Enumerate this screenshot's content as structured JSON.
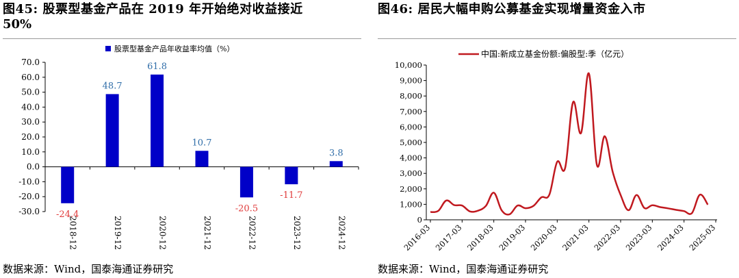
{
  "left_panel": {
    "title_line1": "图45:  股票型基金产品在  2019  年开始绝对收益接近",
    "title_line2": "50%",
    "source": "数据来源：Wind，国泰海通证券研究"
  },
  "right_panel": {
    "title": "图46:  居民大幅申购公募基金实现增量资金入市",
    "source": "数据来源：Wind，国泰海通证券研究"
  },
  "colors": {
    "bar": "#0000c8",
    "positive_label": "#2f6da8",
    "negative_label": "#e03a3a",
    "line": "#c0191f"
  },
  "chart_data": [
    {
      "type": "bar",
      "legend": "股票型基金产品年收益率均值（%）",
      "categories": [
        "2018-12",
        "2019-12",
        "2020-12",
        "2021-12",
        "2022-12",
        "2023-12",
        "2024-12"
      ],
      "values": [
        -24.4,
        48.7,
        61.8,
        10.7,
        -20.5,
        -11.7,
        3.8
      ],
      "value_labels": [
        "-24.4",
        "48.7",
        "61.8",
        "10.7",
        "-20.5",
        "-11.7",
        "3.8"
      ],
      "ylim": [
        -30,
        70
      ],
      "yticks": [
        "70.0",
        "60.0",
        "50.0",
        "40.0",
        "30.0",
        "20.0",
        "10.0",
        "0.0",
        "-10.0",
        "-20.0",
        "-30.0"
      ],
      "grid": false,
      "legend_position": "top"
    },
    {
      "type": "line",
      "legend": "中国:新成立基金份额:偏股型:季（亿元）",
      "x_ticks": [
        "2016-03",
        "2017-03",
        "2018-03",
        "2019-03",
        "2020-03",
        "2021-03",
        "2022-03",
        "2023-03",
        "2024-03",
        "2025-03"
      ],
      "yticks": [
        "10,000",
        "9,000",
        "8,000",
        "7,000",
        "6,000",
        "5,000",
        "4,000",
        "3,000",
        "2,000",
        "1,000",
        "0"
      ],
      "ylim": [
        0,
        10000
      ],
      "x_start": "2016-03",
      "frequency": "quarterly",
      "values": [
        500,
        580,
        1250,
        950,
        920,
        540,
        590,
        900,
        1750,
        600,
        360,
        920,
        750,
        900,
        1450,
        1620,
        3750,
        3350,
        7600,
        5600,
        9450,
        3550,
        5400,
        3100,
        1600,
        620,
        1600,
        760,
        940,
        820,
        740,
        640,
        560,
        440,
        1620,
        980
      ],
      "grid": false,
      "legend_position": "top"
    }
  ]
}
